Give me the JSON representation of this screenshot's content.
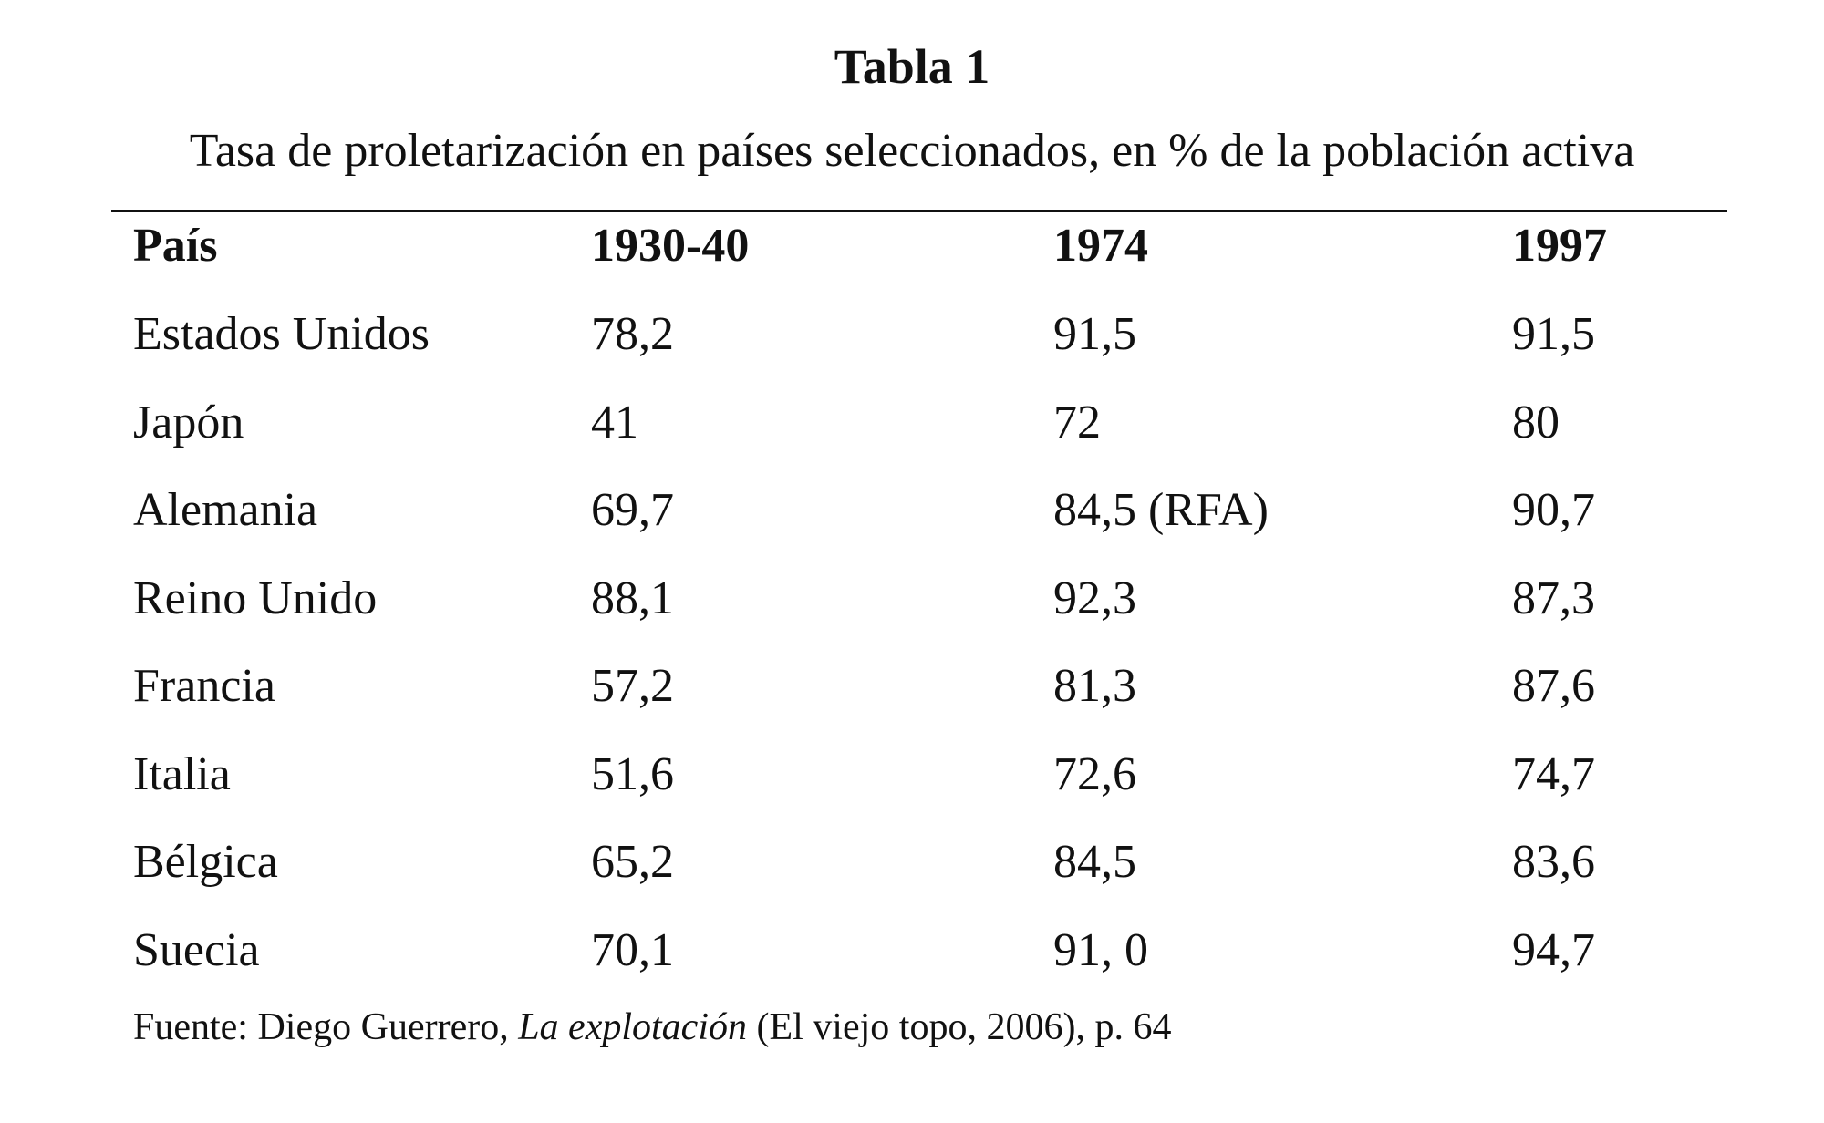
{
  "header": {
    "title": "Tabla 1",
    "subtitle": "Tasa de proletarización en países seleccionados, en % de la población activa"
  },
  "table": {
    "columns": [
      "País",
      "1930-40",
      "1974",
      "1997"
    ],
    "rows": [
      [
        "Estados Unidos",
        "78,2",
        "91,5",
        "91,5"
      ],
      [
        "Japón",
        "41",
        "72",
        "80"
      ],
      [
        "Alemania",
        "69,7",
        "84,5 (RFA)",
        "90,7"
      ],
      [
        "Reino Unido",
        "88,1",
        "92,3",
        "87,3"
      ],
      [
        "Francia",
        "57,2",
        "81,3",
        "87,6"
      ],
      [
        "Italia",
        "51,6",
        "72,6",
        "74,7"
      ],
      [
        "Bélgica",
        "65,2",
        "84,5",
        "83,6"
      ],
      [
        "Suecia",
        "70,1",
        "91, 0",
        "94,7"
      ]
    ]
  },
  "source": {
    "prefix": "Fuente: Diego Guerrero, ",
    "work": "La explotación",
    "suffix": " (El viejo topo, 2006), p. 64"
  }
}
